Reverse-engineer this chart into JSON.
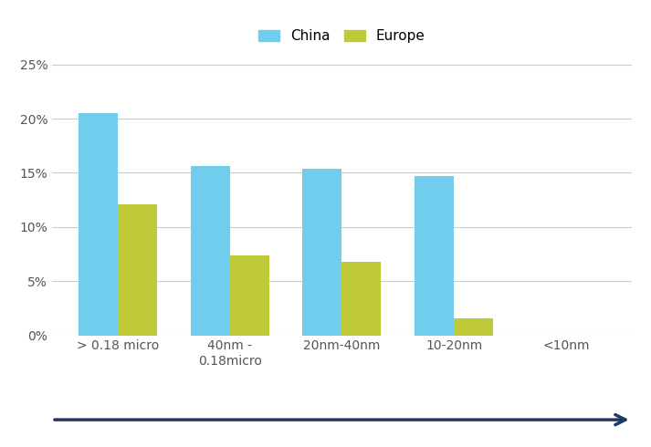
{
  "categories": [
    "> 0.18 micro",
    "40nm -\n0.18micro",
    "20nm-40nm",
    "10-20nm",
    "<10nm"
  ],
  "china_values": [
    0.205,
    0.156,
    0.154,
    0.147,
    0.0
  ],
  "europe_values": [
    0.121,
    0.074,
    0.068,
    0.016,
    0.0
  ],
  "china_color": "#70CDED",
  "europe_color": "#BECA38",
  "china_label": "China",
  "europe_label": "Europe",
  "ylim": [
    0,
    0.26
  ],
  "yticks": [
    0.0,
    0.05,
    0.1,
    0.15,
    0.2,
    0.25
  ],
  "ytick_labels": [
    "0%",
    "5%",
    "10%",
    "15%",
    "20%",
    "25%"
  ],
  "background_color": "#ffffff",
  "grid_color": "#cccccc",
  "arrow_color": "#1F3864",
  "bar_width": 0.35,
  "legend_fontsize": 11,
  "tick_fontsize": 10,
  "axis_label_fontsize": 11
}
